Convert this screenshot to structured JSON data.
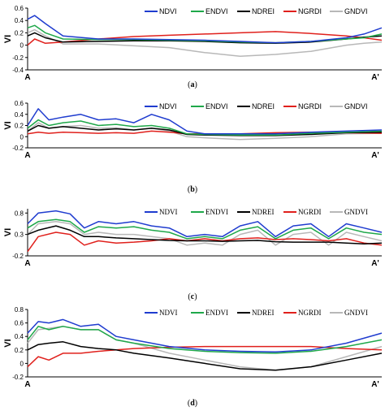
{
  "chart_data": [
    {
      "type": "line",
      "caption": "a",
      "ylabel": "VI",
      "xlabel_start": "A",
      "xlabel_end": "A'",
      "ylim": [
        -0.4,
        0.6
      ],
      "yticks": [
        "0.6",
        "0.4",
        "0.2",
        "0",
        "-0.2",
        "-0.4"
      ],
      "legend": "top-right",
      "legend_font": "sans",
      "x": [
        0,
        0.02,
        0.05,
        0.1,
        0.2,
        0.3,
        0.4,
        0.5,
        0.6,
        0.7,
        0.8,
        0.9,
        0.95,
        1.0
      ],
      "series": [
        {
          "name": "NDVI",
          "color": "#1f3ccf",
          "values": [
            0.42,
            0.48,
            0.35,
            0.15,
            0.1,
            0.1,
            0.09,
            0.08,
            0.06,
            0.04,
            0.06,
            0.12,
            0.18,
            0.28
          ]
        },
        {
          "name": "ENDVI",
          "color": "#1fa84a",
          "values": [
            0.28,
            0.32,
            0.2,
            0.1,
            0.09,
            0.09,
            0.08,
            0.07,
            0.05,
            0.04,
            0.06,
            0.1,
            0.12,
            0.18
          ]
        },
        {
          "name": "NDREI",
          "color": "#000000",
          "values": [
            0.15,
            0.2,
            0.12,
            0.05,
            0.06,
            0.07,
            0.07,
            0.06,
            0.04,
            0.03,
            0.05,
            0.1,
            0.13,
            0.15
          ]
        },
        {
          "name": "NGRDI",
          "color": "#e0201c",
          "values": [
            0.0,
            0.1,
            0.03,
            0.05,
            0.1,
            0.14,
            0.16,
            0.18,
            0.2,
            0.22,
            0.19,
            0.15,
            0.12,
            0.08
          ]
        },
        {
          "name": "GNDVI",
          "color": "#b8b8b8",
          "values": [
            0.2,
            0.25,
            0.15,
            0.02,
            0.02,
            -0.01,
            -0.04,
            -0.12,
            -0.18,
            -0.15,
            -0.1,
            0.0,
            0.03,
            0.05
          ]
        }
      ]
    },
    {
      "type": "line",
      "caption": "b",
      "ylabel": "VI",
      "xlabel_start": "A",
      "xlabel_end": "A'",
      "ylim": [
        -0.2,
        0.6
      ],
      "yticks": [
        "0.6",
        "0.4",
        "0.2",
        "0",
        "-0.2"
      ],
      "legend": "top-right",
      "legend_font": "sans",
      "x": [
        0,
        0.03,
        0.06,
        0.1,
        0.15,
        0.2,
        0.25,
        0.3,
        0.35,
        0.4,
        0.45,
        0.5,
        0.6,
        0.7,
        0.8,
        0.9,
        1.0
      ],
      "series": [
        {
          "name": "NDVI",
          "color": "#1f3ccf",
          "values": [
            0.2,
            0.5,
            0.3,
            0.35,
            0.4,
            0.3,
            0.32,
            0.25,
            0.4,
            0.3,
            0.1,
            0.05,
            0.05,
            0.05,
            0.08,
            0.1,
            0.12
          ]
        },
        {
          "name": "ENDVI",
          "color": "#1fa84a",
          "values": [
            0.15,
            0.3,
            0.2,
            0.25,
            0.28,
            0.2,
            0.22,
            0.18,
            0.2,
            0.15,
            0.05,
            0.04,
            0.03,
            0.03,
            0.06,
            0.08,
            0.1
          ]
        },
        {
          "name": "NDREI",
          "color": "#000000",
          "values": [
            0.1,
            0.2,
            0.15,
            0.18,
            0.15,
            0.12,
            0.14,
            0.12,
            0.15,
            0.12,
            0.04,
            0.03,
            0.02,
            0.02,
            0.04,
            0.07,
            0.08
          ]
        },
        {
          "name": "NGRDI",
          "color": "#e0201c",
          "values": [
            0.05,
            0.08,
            0.06,
            0.08,
            0.07,
            0.06,
            0.07,
            0.06,
            0.1,
            0.08,
            0.05,
            0.05,
            0.05,
            0.07,
            0.08,
            0.07,
            0.06
          ]
        },
        {
          "name": "GNDVI",
          "color": "#b8b8b8",
          "values": [
            0.1,
            0.25,
            0.15,
            0.18,
            0.2,
            0.15,
            0.16,
            0.12,
            0.15,
            0.1,
            0.0,
            -0.02,
            -0.05,
            -0.03,
            0.0,
            0.05,
            0.06
          ]
        }
      ]
    },
    {
      "type": "line",
      "caption": "c",
      "ylabel": "VI",
      "xlabel_start": "A",
      "xlabel_end": "A'",
      "ylim": [
        -0.2,
        0.9
      ],
      "yticks": [
        "0.8",
        "0.3",
        "-0.2"
      ],
      "legend": "top-right",
      "legend_font": "serif",
      "x": [
        0,
        0.03,
        0.08,
        0.12,
        0.16,
        0.2,
        0.25,
        0.3,
        0.35,
        0.4,
        0.45,
        0.5,
        0.55,
        0.6,
        0.65,
        0.7,
        0.75,
        0.8,
        0.85,
        0.9,
        0.95,
        1.0
      ],
      "series": [
        {
          "name": "NDVI",
          "color": "#1f3ccf",
          "values": [
            0.55,
            0.8,
            0.85,
            0.78,
            0.45,
            0.6,
            0.55,
            0.6,
            0.5,
            0.45,
            0.25,
            0.3,
            0.25,
            0.5,
            0.6,
            0.25,
            0.5,
            0.55,
            0.25,
            0.55,
            0.45,
            0.35
          ]
        },
        {
          "name": "ENDVI",
          "color": "#1fa84a",
          "values": [
            0.45,
            0.6,
            0.65,
            0.6,
            0.35,
            0.48,
            0.45,
            0.48,
            0.4,
            0.35,
            0.2,
            0.25,
            0.2,
            0.4,
            0.48,
            0.2,
            0.4,
            0.45,
            0.2,
            0.45,
            0.35,
            0.3
          ]
        },
        {
          "name": "NDREI",
          "color": "#000000",
          "values": [
            0.3,
            0.4,
            0.5,
            0.4,
            0.25,
            0.25,
            0.22,
            0.2,
            0.18,
            0.16,
            0.15,
            0.15,
            0.14,
            0.15,
            0.16,
            0.13,
            0.12,
            0.12,
            0.12,
            0.1,
            0.08,
            0.1
          ]
        },
        {
          "name": "NGRDI",
          "color": "#e0201c",
          "values": [
            -0.1,
            0.25,
            0.35,
            0.3,
            0.05,
            0.15,
            0.1,
            0.12,
            0.15,
            0.2,
            0.15,
            0.2,
            0.15,
            0.2,
            0.22,
            0.18,
            0.2,
            0.18,
            0.15,
            0.2,
            0.1,
            0.05
          ]
        },
        {
          "name": "GNDVI",
          "color": "#b8b8b8",
          "values": [
            0.3,
            0.55,
            0.6,
            0.55,
            0.3,
            0.35,
            0.3,
            0.3,
            0.25,
            0.2,
            0.05,
            0.1,
            0.05,
            0.3,
            0.4,
            0.05,
            0.3,
            0.35,
            0.05,
            0.35,
            0.25,
            0.15
          ]
        }
      ]
    },
    {
      "type": "line",
      "caption": "d",
      "ylabel": "VI",
      "xlabel_start": "A",
      "xlabel_end": "A'",
      "ylim": [
        -0.2,
        0.8
      ],
      "yticks": [
        "0.8",
        "0.6",
        "0.4",
        "0.2",
        "0",
        "-0.2"
      ],
      "legend": "top-right",
      "legend_font": "serif",
      "x": [
        0,
        0.03,
        0.06,
        0.1,
        0.15,
        0.2,
        0.25,
        0.3,
        0.4,
        0.5,
        0.6,
        0.7,
        0.8,
        0.9,
        1.0
      ],
      "series": [
        {
          "name": "NDVI",
          "color": "#1f3ccf",
          "values": [
            0.45,
            0.62,
            0.6,
            0.65,
            0.55,
            0.58,
            0.4,
            0.35,
            0.25,
            0.2,
            0.18,
            0.17,
            0.2,
            0.3,
            0.45
          ]
        },
        {
          "name": "ENDVI",
          "color": "#1fa84a",
          "values": [
            0.35,
            0.55,
            0.5,
            0.55,
            0.5,
            0.5,
            0.35,
            0.3,
            0.22,
            0.18,
            0.16,
            0.15,
            0.18,
            0.25,
            0.35
          ]
        },
        {
          "name": "NDREI",
          "color": "#000000",
          "values": [
            0.2,
            0.28,
            0.3,
            0.32,
            0.25,
            0.22,
            0.2,
            0.15,
            0.08,
            0.0,
            -0.08,
            -0.1,
            -0.05,
            0.05,
            0.15
          ]
        },
        {
          "name": "NGRDI",
          "color": "#e0201c",
          "values": [
            -0.05,
            0.1,
            0.05,
            0.15,
            0.15,
            0.18,
            0.2,
            0.22,
            0.24,
            0.25,
            0.25,
            0.25,
            0.25,
            0.22,
            0.2
          ]
        },
        {
          "name": "GNDVI",
          "color": "#b8b8b8",
          "values": [
            0.3,
            0.5,
            0.52,
            0.55,
            0.5,
            0.5,
            0.35,
            0.3,
            0.15,
            0.05,
            -0.05,
            -0.1,
            -0.05,
            0.1,
            0.25
          ]
        }
      ]
    }
  ]
}
